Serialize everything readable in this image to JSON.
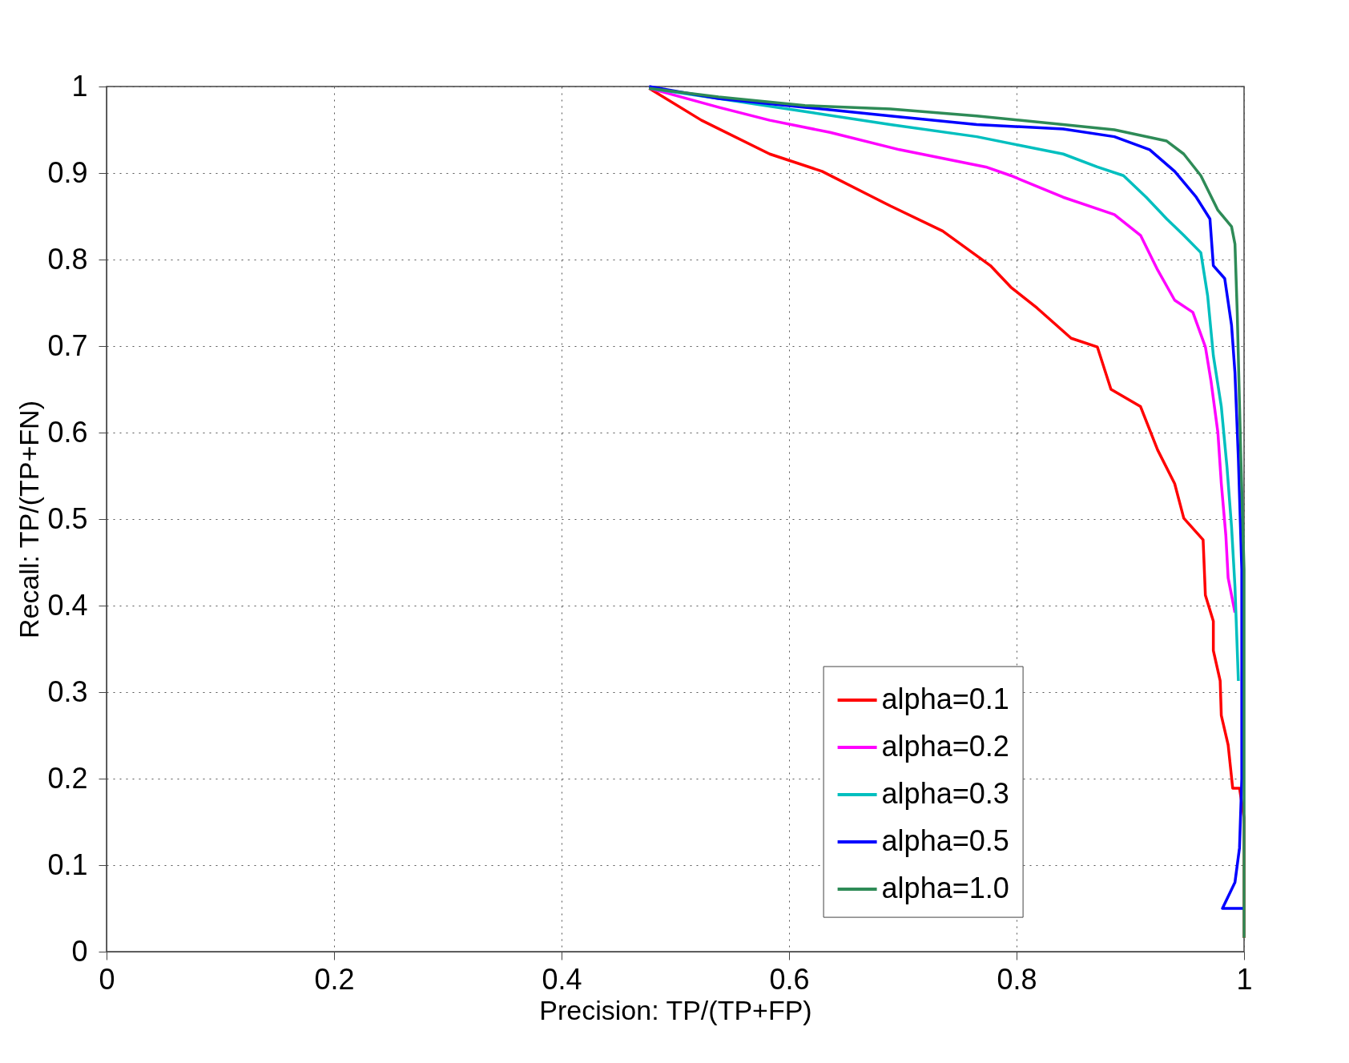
{
  "chart_data": {
    "type": "line",
    "xlabel": "Precision:  TP/(TP+FP)",
    "ylabel": "Recall:  TP/(TP+FN)",
    "xlim": [
      0,
      1
    ],
    "ylim": [
      0,
      1
    ],
    "xticks": [
      0,
      0.2,
      0.4,
      0.6,
      0.8,
      1
    ],
    "yticks": [
      0,
      0.1,
      0.2,
      0.3,
      0.4,
      0.5,
      0.6,
      0.7,
      0.8,
      0.9,
      1
    ],
    "grid": true,
    "legend": "bottom right",
    "line_style": "solid",
    "marker": "none",
    "series": [
      {
        "name": "alpha=0.1",
        "color": "#ff0000",
        "x": [
          0.477,
          0.523,
          0.583,
          0.629,
          0.674,
          0.689,
          0.735,
          0.777,
          0.795,
          0.818,
          0.848,
          0.871,
          0.883,
          0.909,
          0.924,
          0.939,
          0.947,
          0.964,
          0.966,
          0.973,
          0.973,
          0.979,
          0.98,
          0.986,
          0.99,
          0.996,
          1.0,
          1.0
        ],
        "values": [
          0.998,
          0.961,
          0.922,
          0.902,
          0.872,
          0.862,
          0.833,
          0.793,
          0.768,
          0.744,
          0.709,
          0.699,
          0.65,
          0.63,
          0.58,
          0.541,
          0.501,
          0.476,
          0.412,
          0.382,
          0.348,
          0.313,
          0.273,
          0.239,
          0.189,
          0.189,
          0.155,
          0.016
        ]
      },
      {
        "name": "alpha=0.2",
        "color": "#ff00ff",
        "x": [
          0.477,
          0.538,
          0.583,
          0.636,
          0.697,
          0.773,
          0.795,
          0.841,
          0.886,
          0.909,
          0.924,
          0.939,
          0.955,
          0.966,
          0.971,
          0.977,
          0.98,
          0.984,
          0.986,
          0.992
        ],
        "values": [
          0.998,
          0.976,
          0.961,
          0.947,
          0.927,
          0.907,
          0.897,
          0.872,
          0.852,
          0.828,
          0.788,
          0.753,
          0.739,
          0.699,
          0.659,
          0.6,
          0.541,
          0.481,
          0.432,
          0.392
        ]
      },
      {
        "name": "alpha=0.3",
        "color": "#00bfbf",
        "x": [
          0.477,
          0.538,
          0.614,
          0.689,
          0.765,
          0.803,
          0.841,
          0.871,
          0.894,
          0.914,
          0.932,
          0.947,
          0.962,
          0.968,
          0.973,
          0.98,
          0.985,
          0.989,
          0.992,
          0.995
        ],
        "values": [
          0.998,
          0.986,
          0.971,
          0.956,
          0.942,
          0.932,
          0.922,
          0.907,
          0.897,
          0.872,
          0.847,
          0.828,
          0.808,
          0.758,
          0.689,
          0.63,
          0.56,
          0.491,
          0.422,
          0.313
        ]
      },
      {
        "name": "alpha=0.5",
        "color": "#0000ff",
        "x": [
          0.477,
          0.538,
          0.614,
          0.689,
          0.765,
          0.841,
          0.886,
          0.917,
          0.939,
          0.958,
          0.97,
          0.973,
          0.983,
          0.989,
          0.992,
          0.995,
          0.998,
          0.998,
          0.996,
          0.992,
          0.981,
          1.0
        ],
        "values": [
          1.0,
          0.986,
          0.976,
          0.966,
          0.956,
          0.951,
          0.942,
          0.927,
          0.902,
          0.872,
          0.847,
          0.793,
          0.778,
          0.724,
          0.669,
          0.57,
          0.442,
          0.2,
          0.12,
          0.08,
          0.05,
          0.05
        ]
      },
      {
        "name": "alpha=1.0",
        "color": "#2e8b57",
        "x": [
          0.477,
          0.538,
          0.614,
          0.689,
          0.765,
          0.841,
          0.886,
          0.932,
          0.947,
          0.962,
          0.977,
          0.989,
          0.992,
          0.994,
          0.997,
          1.0,
          1.0
        ],
        "values": [
          0.998,
          0.988,
          0.978,
          0.974,
          0.966,
          0.956,
          0.95,
          0.937,
          0.922,
          0.897,
          0.857,
          0.838,
          0.818,
          0.739,
          0.58,
          0.442,
          0.016
        ]
      }
    ]
  }
}
